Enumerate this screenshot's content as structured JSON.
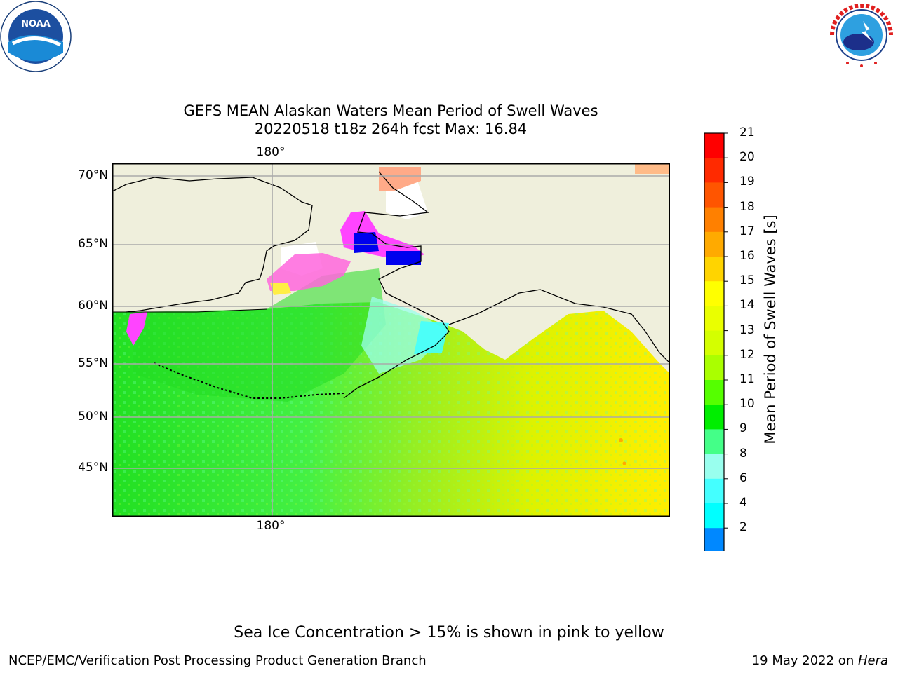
{
  "header": {
    "title_line1": "GEFS MEAN Alaskan Waters Mean Period of Swell Waves",
    "title_line2": "20220518 t18z 264h fcst   Max: 16.84"
  },
  "map": {
    "lat_labels": [
      "70°N",
      "65°N",
      "60°N",
      "55°N",
      "50°N",
      "45°N"
    ],
    "lon_label_top": "180°",
    "lon_label_bottom": "180°",
    "land_color": "#efefdc",
    "ice_colors": [
      "#ff44ff",
      "#ff99cc",
      "#ffcc88",
      "#ffee44"
    ]
  },
  "colorbar": {
    "title": "Mean Period of Swell Waves [s]",
    "ticks": [
      "21",
      "20",
      "19",
      "18",
      "17",
      "16",
      "15",
      "14",
      "13",
      "12",
      "11",
      "10",
      "9",
      "8",
      "6",
      "4",
      "2"
    ],
    "colors": [
      "#ff0000",
      "#ff2a00",
      "#ff5500",
      "#ff8000",
      "#ffaa00",
      "#ffd400",
      "#ffff00",
      "#eaff00",
      "#d4ff00",
      "#aaff00",
      "#55ff00",
      "#00ee00",
      "#44ff88",
      "#99ffee",
      "#44ffff",
      "#00ffff",
      "#0088ff"
    ],
    "extend_color": "#0000ee"
  },
  "logos": {
    "noaa_text": "NOAA",
    "noaa_ring_text": "NATIONAL OCEANIC AND ATMOSPHERIC ADMINISTRATION · U.S. DEPARTMENT OF COMMERCE",
    "nws_ring_text": "NATIONAL WEATHER SERVICE"
  },
  "footer": {
    "note": "Sea Ice Concentration > 15% is shown in pink to yellow",
    "left": "NCEP/EMC/Verification Post Processing Product Generation Branch",
    "right_date": "19 May 2022 on ",
    "right_host": "Hera"
  }
}
